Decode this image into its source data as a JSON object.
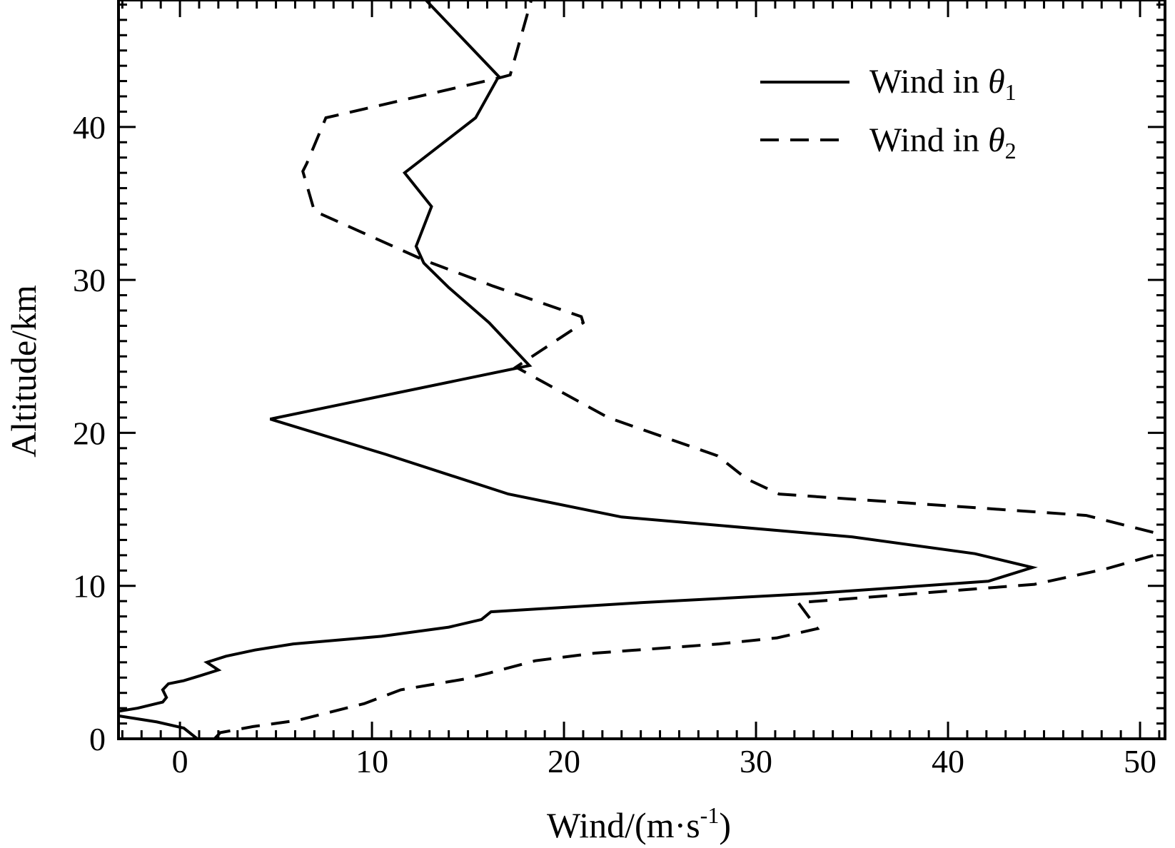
{
  "chart_data": {
    "type": "line",
    "title": "",
    "xlabel": "Wind/(m·s",
    "xlabel_sup": "-1",
    "xlabel_end": ")",
    "ylabel": "Altitude/km",
    "xlim": [
      -3.2,
      51.3
    ],
    "ylim": [
      0,
      48.3
    ],
    "xticks": [
      0,
      10,
      20,
      30,
      40,
      50
    ],
    "yticks": [
      0,
      10,
      20,
      30,
      40
    ],
    "grid": false,
    "legend_position": "top-right",
    "series": [
      {
        "name": "Wind in θ1",
        "legend_main": "Wind in ",
        "legend_symbol": "θ",
        "legend_sub": "1",
        "style": "solid",
        "color": "#000000",
        "points": [
          [
            0.9,
            0
          ],
          [
            0.2,
            0.7
          ],
          [
            -1.2,
            1.1
          ],
          [
            -3.2,
            1.5
          ],
          [
            -3.2,
            1.8
          ],
          [
            -2.2,
            2.0
          ],
          [
            -0.9,
            2.4
          ],
          [
            -0.7,
            2.7
          ],
          [
            -0.9,
            3.2
          ],
          [
            -0.6,
            3.6
          ],
          [
            0.2,
            3.8
          ],
          [
            1.0,
            4.1
          ],
          [
            2.0,
            4.5
          ],
          [
            1.4,
            5.0
          ],
          [
            2.4,
            5.4
          ],
          [
            3.9,
            5.8
          ],
          [
            5.9,
            6.2
          ],
          [
            10.5,
            6.7
          ],
          [
            14.0,
            7.3
          ],
          [
            15.7,
            7.8
          ],
          [
            16.2,
            8.3
          ],
          [
            24.0,
            8.9
          ],
          [
            33.0,
            9.5
          ],
          [
            42.1,
            10.3
          ],
          [
            44.4,
            11.2
          ],
          [
            41.4,
            12.1
          ],
          [
            35.0,
            13.2
          ],
          [
            23.0,
            14.5
          ],
          [
            17.1,
            16.0
          ],
          [
            10.7,
            18.6
          ],
          [
            4.7,
            20.9
          ],
          [
            18.2,
            24.4
          ],
          [
            16.1,
            27.2
          ],
          [
            14.0,
            29.5
          ],
          [
            12.7,
            31.1
          ],
          [
            12.3,
            32.2
          ],
          [
            13.1,
            34.8
          ],
          [
            11.7,
            37.0
          ],
          [
            15.4,
            40.6
          ],
          [
            16.6,
            43.3
          ],
          [
            12.8,
            48.3
          ]
        ]
      },
      {
        "name": "Wind in θ2",
        "legend_main": "Wind in ",
        "legend_symbol": "θ",
        "legend_sub": "2",
        "style": "dashed",
        "color": "#000000",
        "points": [
          [
            1.8,
            0
          ],
          [
            2.1,
            0.4
          ],
          [
            3.8,
            0.8
          ],
          [
            6.1,
            1.2
          ],
          [
            9.6,
            2.3
          ],
          [
            11.5,
            3.2
          ],
          [
            14.8,
            3.9
          ],
          [
            16.1,
            4.3
          ],
          [
            18.5,
            5.1
          ],
          [
            21.6,
            5.6
          ],
          [
            28.1,
            6.2
          ],
          [
            31.1,
            6.6
          ],
          [
            33.2,
            7.2
          ],
          [
            32.2,
            8.9
          ],
          [
            44.5,
            10.1
          ],
          [
            48.2,
            11.1
          ],
          [
            51.3,
            12.2
          ],
          [
            51.3,
            13.3
          ],
          [
            47.2,
            14.6
          ],
          [
            31.2,
            16.0
          ],
          [
            29.5,
            17.0
          ],
          [
            28.0,
            18.5
          ],
          [
            22.3,
            21.0
          ],
          [
            17.5,
            24.3
          ],
          [
            21.0,
            27.2
          ],
          [
            20.9,
            27.6
          ],
          [
            16.3,
            29.6
          ],
          [
            12.7,
            31.3
          ],
          [
            7.0,
            34.5
          ],
          [
            6.4,
            37.1
          ],
          [
            6.6,
            37.6
          ],
          [
            7.6,
            40.6
          ],
          [
            16.6,
            43.2
          ],
          [
            17.2,
            43.4
          ],
          [
            18.3,
            48.3
          ]
        ]
      }
    ]
  }
}
